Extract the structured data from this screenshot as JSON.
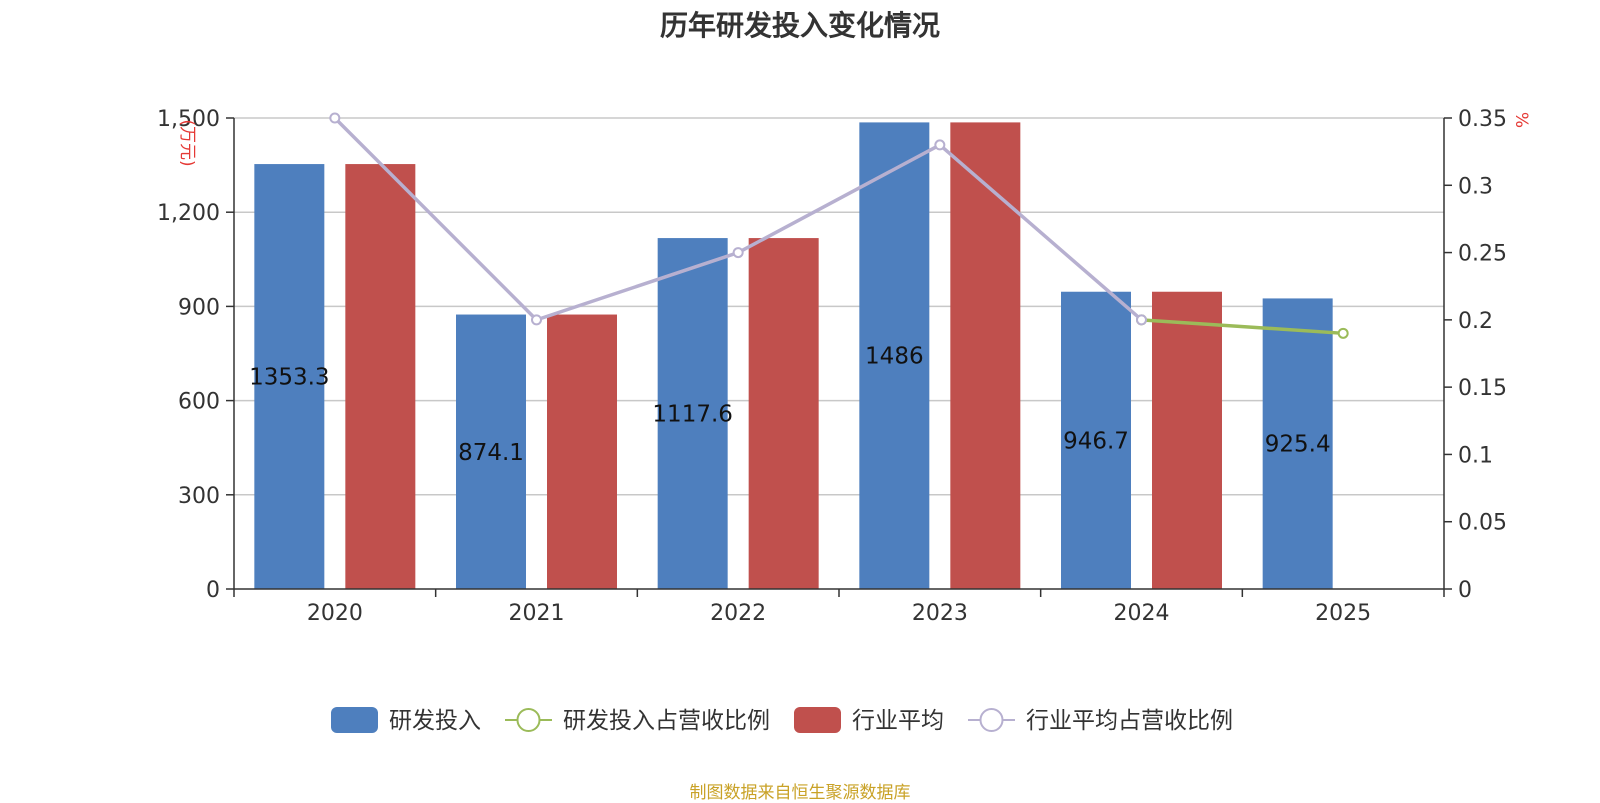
{
  "title": "历年研发投入变化情况",
  "source": "制图数据来自恒生聚源数据库",
  "colors": {
    "rd": "#4e7fbe",
    "industry": "#c0504d",
    "rd_ratio": "#9bbb59",
    "industry_ratio": "#b7b0d0",
    "axis_unit": "#e53935"
  },
  "chart_data": {
    "type": "bar",
    "title": "历年研发投入变化情况",
    "categories": [
      "2020",
      "2021",
      "2022",
      "2023",
      "2024",
      "2025"
    ],
    "y_left": {
      "unit": "(万元)",
      "range": [
        0,
        1500
      ],
      "ticks": [
        "0",
        "300",
        "600",
        "900",
        "1,200",
        "1,500"
      ],
      "tick_values": [
        0,
        300,
        600,
        900,
        1200,
        1500
      ]
    },
    "y_right": {
      "unit": "%",
      "range": [
        0,
        0.35
      ],
      "ticks": [
        "0",
        "0.05",
        "0.1",
        "0.15",
        "0.2",
        "0.25",
        "0.3",
        "0.35"
      ],
      "tick_values": [
        0,
        0.05,
        0.1,
        0.15,
        0.2,
        0.25,
        0.3,
        0.35
      ]
    },
    "grid": true,
    "legend_position": "bottom",
    "series": [
      {
        "name": "研发投入",
        "kind": "bar",
        "axis": "left",
        "color": "#4e7fbe",
        "values": [
          1353.3,
          874.1,
          1117.6,
          1486,
          946.7,
          925.4
        ],
        "labels": [
          "1353.3",
          "874.1",
          "1117.6",
          "1486",
          "946.7",
          "925.4"
        ]
      },
      {
        "name": "研发投入占营收比例",
        "kind": "line",
        "axis": "right",
        "color": "#9bbb59",
        "values": [
          null,
          null,
          null,
          null,
          0.2,
          0.19
        ]
      },
      {
        "name": "行业平均",
        "kind": "bar",
        "axis": "left",
        "color": "#c0504d",
        "values": [
          1353.3,
          874.1,
          1117.6,
          1486,
          946.7,
          null
        ]
      },
      {
        "name": "行业平均占营收比例",
        "kind": "line",
        "axis": "right",
        "color": "#b7b0d0",
        "values": [
          0.35,
          0.2,
          0.25,
          0.33,
          0.2,
          null
        ]
      }
    ]
  }
}
